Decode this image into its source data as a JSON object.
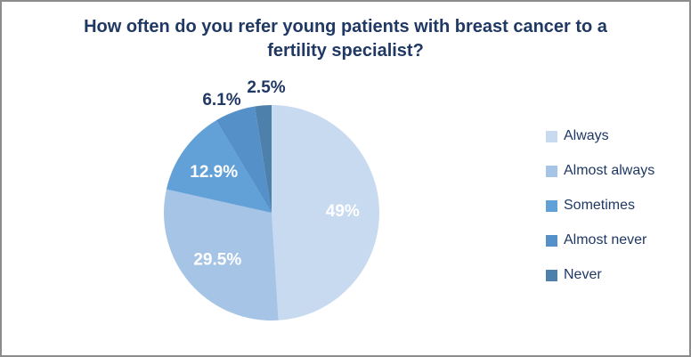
{
  "frame": {
    "background": "#ffffff",
    "border_color": "#8c8c8c"
  },
  "chart_data": {
    "type": "pie",
    "title": "How often do you refer young patients with breast cancer to a fertility specialist?",
    "title_lines": [
      "How often do you refer young patients with breast cancer to a",
      "fertility specialist?"
    ],
    "categories": [
      "Always",
      "Almost always",
      "Sometimes",
      "Almost never",
      "Never"
    ],
    "values": [
      49,
      29.5,
      12.9,
      6.1,
      2.5
    ],
    "display_labels": [
      "49%",
      "29.5%",
      "12.9%",
      "6.1%",
      "2.5%"
    ],
    "colors": [
      "#c7daf0",
      "#a6c4e6",
      "#62a0d8",
      "#5591c8",
      "#4d80ab"
    ],
    "start_angle_deg": 0,
    "direction": "clockwise",
    "legend_position": "right",
    "title_color": "#1f3864",
    "outside_label_color": "#1f3864",
    "inside_label_color": "#ffffff",
    "legend_text_color": "#1f3864"
  }
}
